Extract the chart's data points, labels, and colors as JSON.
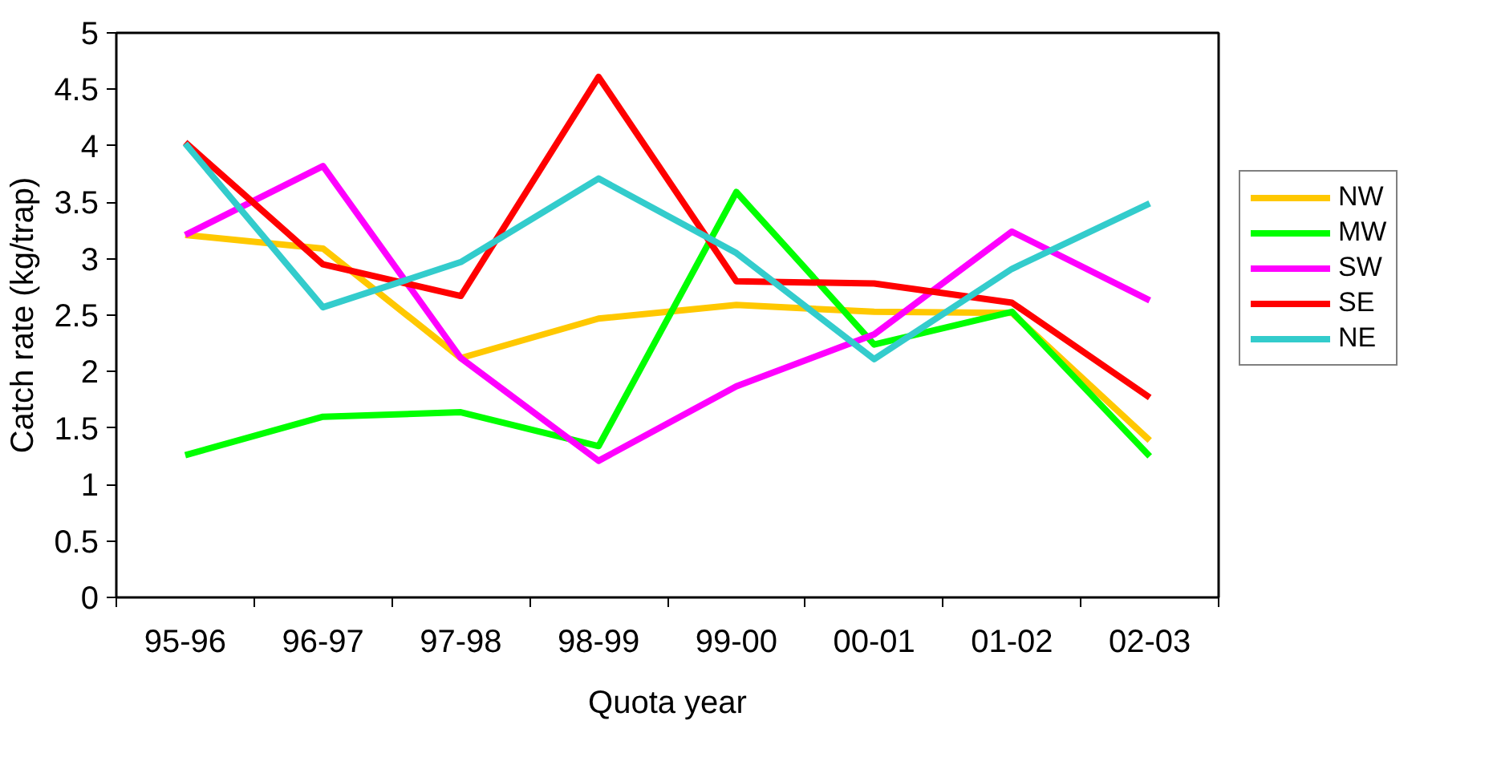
{
  "chart_data": {
    "type": "line",
    "xlabel": "Quota year",
    "ylabel": "Catch rate (kg/trap)",
    "categories": [
      "95-96",
      "96-97",
      "97-98",
      "98-99",
      "99-00",
      "00-01",
      "01-02",
      "02-03"
    ],
    "ylim": [
      0,
      5
    ],
    "yticks": [
      0,
      {
        "value": 0.5,
        "label": "0.5"
      },
      1,
      {
        "value": 1.5,
        "label": "1.5"
      },
      2,
      {
        "value": 2.5,
        "label": "2.5"
      },
      3,
      {
        "value": 3.5,
        "label": "3.5"
      },
      4,
      {
        "value": 4.5,
        "label": "4.5"
      },
      5
    ],
    "grid": false,
    "legend": "right",
    "marker": "none",
    "line_style": "solid",
    "series": [
      {
        "name": "NW",
        "color": "#ffc800",
        "values": [
          3.21,
          3.09,
          2.12,
          2.47,
          2.59,
          2.53,
          2.52,
          1.39
        ]
      },
      {
        "name": "MW",
        "color": "#00ff00",
        "values": [
          1.26,
          1.6,
          1.64,
          1.34,
          3.59,
          2.24,
          2.53,
          1.25
        ]
      },
      {
        "name": "SW",
        "color": "#ff00ff",
        "values": [
          3.21,
          3.82,
          2.12,
          1.21,
          1.87,
          2.33,
          3.24,
          2.63
        ]
      },
      {
        "name": "SE",
        "color": "#ff0000",
        "values": [
          4.03,
          2.95,
          2.67,
          4.61,
          2.8,
          2.78,
          2.61,
          1.77
        ]
      },
      {
        "name": "NE",
        "color": "#33cccc",
        "values": [
          4.02,
          2.57,
          2.97,
          3.71,
          3.05,
          2.11,
          2.91,
          3.49
        ]
      }
    ]
  }
}
